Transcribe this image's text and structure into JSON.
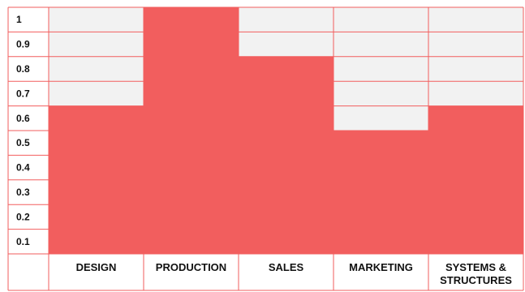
{
  "chart_data": {
    "type": "bar",
    "categories": [
      "DESIGN",
      "PRODUCTION",
      "SALES",
      "MARKETING",
      "SYSTEMS & STRUCTURES"
    ],
    "category_lines": [
      [
        "DESIGN"
      ],
      [
        "PRODUCTION"
      ],
      [
        "SALES"
      ],
      [
        "MARKETING"
      ],
      [
        "SYSTEMS &",
        "STRUCTURES"
      ]
    ],
    "values": [
      0.6,
      1.0,
      0.8,
      0.5,
      0.6
    ],
    "y_ticks": [
      "1",
      "0.9",
      "0.8",
      "0.7",
      "0.6",
      "0.5",
      "0.4",
      "0.3",
      "0.2",
      "0.1"
    ],
    "ylim": [
      0,
      1
    ],
    "grid": true,
    "title": "",
    "xlabel": "",
    "ylabel": "",
    "bar_color": "#f25e5e",
    "grid_color": "#f25e5e",
    "cell_background": "#f2f2f2"
  }
}
